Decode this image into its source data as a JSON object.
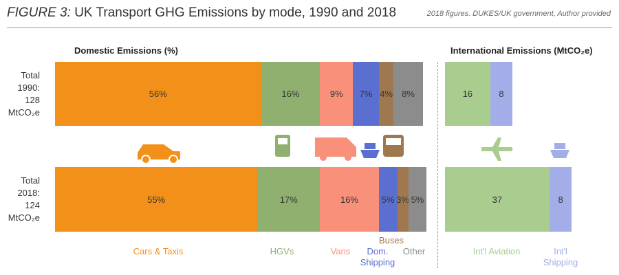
{
  "figure_label": "FIGURE 3:",
  "title": "UK Transport GHG Emissions by mode, 1990 and 2018",
  "source": "2018 figures. DUKES/UK government, Author provided",
  "chart_data": {
    "type": "bar",
    "orientation": "horizontal",
    "stacked": true,
    "categories": [
      "Total 1990: 128 MtCO₂e",
      "Total 2018: 124 MtCO₂e"
    ],
    "panels": [
      {
        "title": "Domestic Emissions (%)",
        "series": [
          {
            "name": "Cars & Taxis",
            "color": "#f39019",
            "values": [
              56,
              55
            ],
            "value_labels": [
              "56%",
              "55%"
            ]
          },
          {
            "name": "HGVs",
            "color": "#8fb06e",
            "values": [
              16,
              17
            ],
            "value_labels": [
              "16%",
              "17%"
            ]
          },
          {
            "name": "Vans",
            "color": "#f8907a",
            "values": [
              9,
              16
            ],
            "value_labels": [
              "9%",
              "16%"
            ]
          },
          {
            "name": "Dom. Shipping",
            "color": "#5b6fd1",
            "values": [
              7,
              5
            ],
            "value_labels": [
              "7%",
              "5%"
            ]
          },
          {
            "name": "Buses",
            "color": "#a07850",
            "values": [
              4,
              3
            ],
            "value_labels": [
              "4%",
              "3%"
            ]
          },
          {
            "name": "Other",
            "color": "#8c8c8c",
            "values": [
              8,
              5
            ],
            "value_labels": [
              "8%",
              "5%"
            ]
          }
        ]
      },
      {
        "title": "International Emissions (MtCO₂e)",
        "series": [
          {
            "name": "Int'l Aviation",
            "color": "#a9cc8f",
            "values": [
              16,
              37
            ]
          },
          {
            "name": "Int'l Shipping",
            "color": "#a3aee8",
            "values": [
              8,
              8
            ]
          }
        ]
      }
    ]
  }
}
